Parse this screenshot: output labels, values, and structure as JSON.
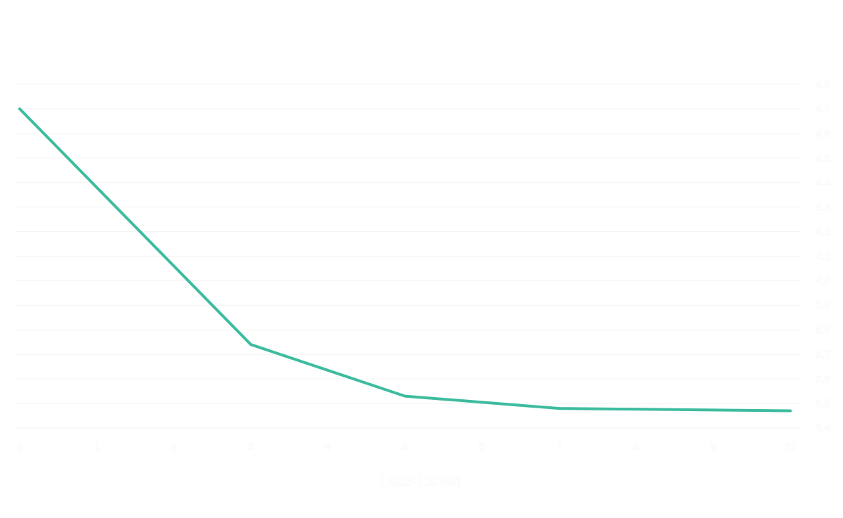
{
  "chart_data": {
    "type": "line",
    "title": "Harga Penjualan Rata-rata",
    "xlabel": "Luas Lahan",
    "ylabel": "",
    "x": [
      0,
      3,
      5,
      7,
      10
    ],
    "series": [
      {
        "values": [
          4.7,
          3.74,
          3.53,
          3.48,
          3.47
        ]
      }
    ],
    "xlim": [
      0,
      10
    ],
    "ylim": [
      3.4,
      4.8
    ],
    "x_ticks": [
      "0",
      "1",
      "2",
      "3",
      "4",
      "5",
      "6",
      "7",
      "8",
      "9",
      "10"
    ],
    "y_ticks": [
      "3.4",
      "3.5",
      "3.6",
      "3.7",
      "3.8",
      "3.9",
      "4.0",
      "4.1",
      "4.2",
      "4.3",
      "4.4",
      "4.5",
      "4.6",
      "4.7",
      "4.8"
    ],
    "y_axis_side": "right",
    "grid": true,
    "legend": "none",
    "line_color": "#3dbc9e"
  }
}
